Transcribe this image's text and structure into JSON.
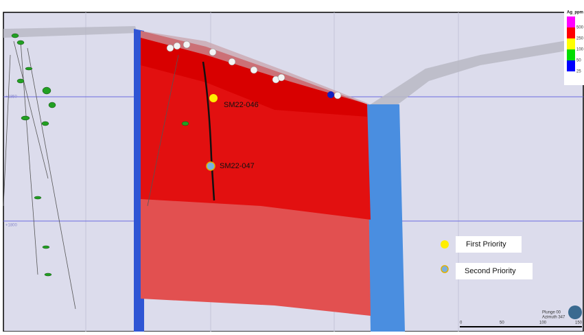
{
  "drill_holes": [
    {
      "label": "SM22-046"
    },
    {
      "label": "SM22-047"
    }
  ],
  "priority_legend": [
    {
      "label": "First Priority"
    },
    {
      "label": "Second Priority"
    }
  ],
  "grade_legend": {
    "title": "Ag_ppm",
    "levels": [
      "500",
      "250",
      "100",
      "50",
      "25"
    ]
  },
  "scale_bar": {
    "ticks": [
      "0",
      "50",
      "100",
      "150"
    ]
  },
  "view": {
    "plunge": "Plunge 00",
    "azimuth": "Azimuth 347"
  },
  "elevation_labels": [
    "+1850",
    "+1800"
  ]
}
